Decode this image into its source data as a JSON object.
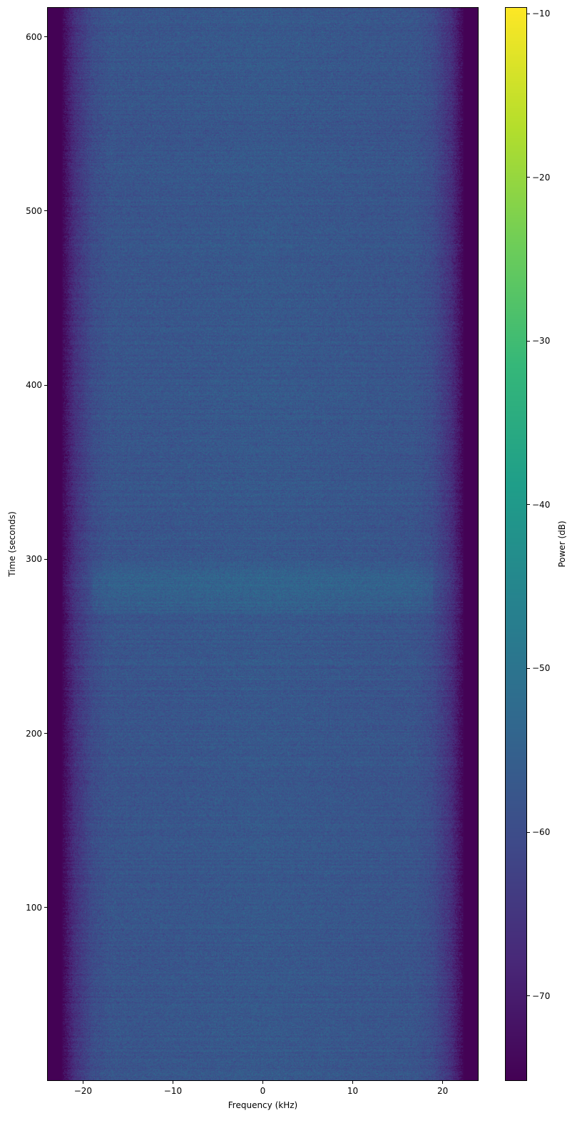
{
  "chart_data": {
    "type": "heatmap",
    "title": "",
    "xlabel": "Frequency (kHz)",
    "ylabel": "Time (seconds)",
    "colorbar_label": "Power (dB)",
    "colormap": "viridis",
    "xlim": [
      -24,
      24
    ],
    "ylim": [
      0.5,
      617
    ],
    "clim": [
      -75.2,
      -9.6
    ],
    "xticks": [
      -20,
      -10,
      0,
      10,
      20
    ],
    "xtick_labels": [
      "−20",
      "−10",
      "0",
      "10",
      "20"
    ],
    "yticks": [
      100,
      200,
      300,
      400,
      500,
      600
    ],
    "ytick_labels": [
      "100",
      "200",
      "300",
      "400",
      "500",
      "600"
    ],
    "cticks": [
      -70,
      -60,
      -50,
      -40,
      -30,
      -20,
      -10
    ],
    "ctick_labels": [
      "−70",
      "−60",
      "−50",
      "−40",
      "−30",
      "−20",
      "−10"
    ],
    "frequency_profile_db": {
      "freq_khz": [
        -24,
        -22.5,
        -21,
        -19,
        -17,
        0,
        17,
        19,
        21,
        22.5,
        24
      ],
      "power_db": [
        -75,
        -75,
        -66,
        -60,
        -58,
        -57,
        -58,
        -60,
        -66,
        -75,
        -75
      ]
    },
    "brighter_time_band_seconds": [
      265,
      300
    ],
    "brighter_band_power_db": -54,
    "noise_std_db": 4
  }
}
